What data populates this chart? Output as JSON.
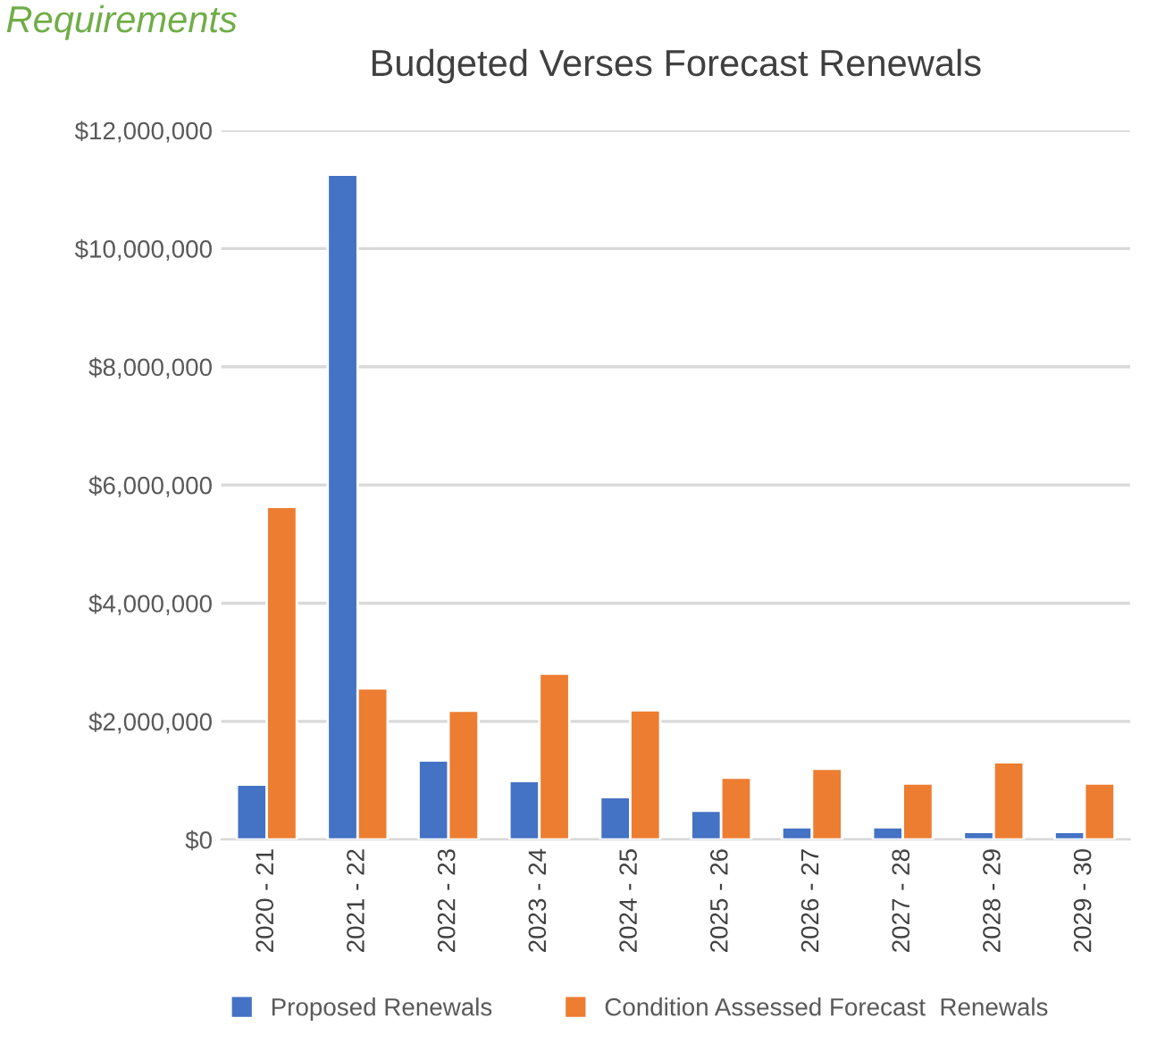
{
  "chart_data": {
    "type": "bar",
    "title": "Budgeted Verses Forecast Renewals",
    "annotations": [
      "Requirements"
    ],
    "categories": [
      "2020 - 21",
      "2021 - 22",
      "2022 - 23",
      "2023 - 24",
      "2024 - 25",
      "2025 - 26",
      "2026 - 27",
      "2027 - 28",
      "2028 - 29",
      "2029 - 30"
    ],
    "series": [
      {
        "name": "Proposed Renewals",
        "color": "#4472c4",
        "values": [
          930000,
          11250000,
          1340000,
          990000,
          720000,
          490000,
          210000,
          210000,
          130000,
          130000
        ]
      },
      {
        "name": "Condition Assessed Forecast  Renewals",
        "color": "#ed7d31",
        "values": [
          5630000,
          2560000,
          2180000,
          2810000,
          2190000,
          1050000,
          1200000,
          950000,
          1310000,
          950000
        ]
      }
    ],
    "ylim": [
      0,
      12000000
    ],
    "yticks": [
      {
        "value": 0,
        "label": "$0"
      },
      {
        "value": 2000000,
        "label": "$2,000,000"
      },
      {
        "value": 4000000,
        "label": "$4,000,000"
      },
      {
        "value": 6000000,
        "label": "$6,000,000"
      },
      {
        "value": 8000000,
        "label": "$8,000,000"
      },
      {
        "value": 10000000,
        "label": "$10,000,000"
      },
      {
        "value": 12000000,
        "label": "$12,000,000"
      }
    ],
    "grid": "y",
    "legend": "bottom"
  }
}
